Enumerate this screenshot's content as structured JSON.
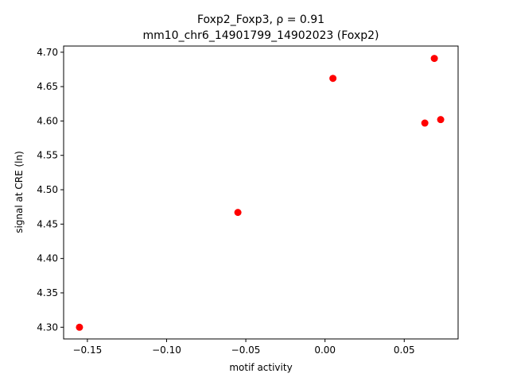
{
  "chart_data": {
    "type": "scatter",
    "title_line1": "Foxp2_Foxp3, ρ = 0.91",
    "title_line2": "mm10_chr6_14901799_14902023 (Foxp2)",
    "xlabel": "motif activity",
    "ylabel": "signal at CRE (ln)",
    "xlim": [
      -0.165,
      0.084
    ],
    "ylim": [
      4.283,
      4.709
    ],
    "xticks": [
      -0.15,
      -0.1,
      -0.05,
      0.0,
      0.05
    ],
    "xtick_labels": [
      "−0.15",
      "−0.10",
      "−0.05",
      "0.00",
      "0.05"
    ],
    "yticks": [
      4.3,
      4.35,
      4.4,
      4.45,
      4.5,
      4.55,
      4.6,
      4.65,
      4.7
    ],
    "ytick_labels": [
      "4.30",
      "4.35",
      "4.40",
      "4.45",
      "4.50",
      "4.55",
      "4.60",
      "4.65",
      "4.70"
    ],
    "grid": false,
    "marker_color": "#ff0000",
    "points": [
      {
        "x": -0.155,
        "y": 4.3
      },
      {
        "x": -0.055,
        "y": 4.467
      },
      {
        "x": 0.005,
        "y": 4.662
      },
      {
        "x": 0.063,
        "y": 4.597
      },
      {
        "x": 0.069,
        "y": 4.691
      },
      {
        "x": 0.073,
        "y": 4.602
      }
    ]
  }
}
